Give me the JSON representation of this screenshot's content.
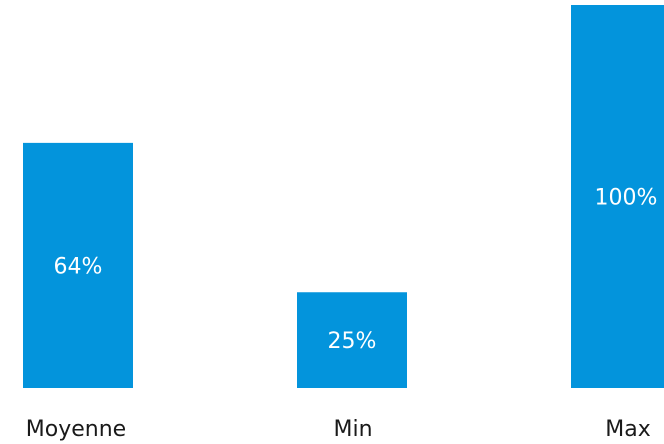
{
  "chart_data": {
    "type": "bar",
    "categories": [
      "Moyenne",
      "Min",
      "Max"
    ],
    "values": [
      64,
      25,
      100
    ],
    "value_labels": [
      "64%",
      "25%",
      "100%"
    ],
    "ylim": [
      0,
      100
    ],
    "grid": false,
    "legend": "none",
    "colors": {
      "bar": "#0394dc",
      "value_text": "#ffffff",
      "category_text": "#1a1a1a"
    }
  }
}
